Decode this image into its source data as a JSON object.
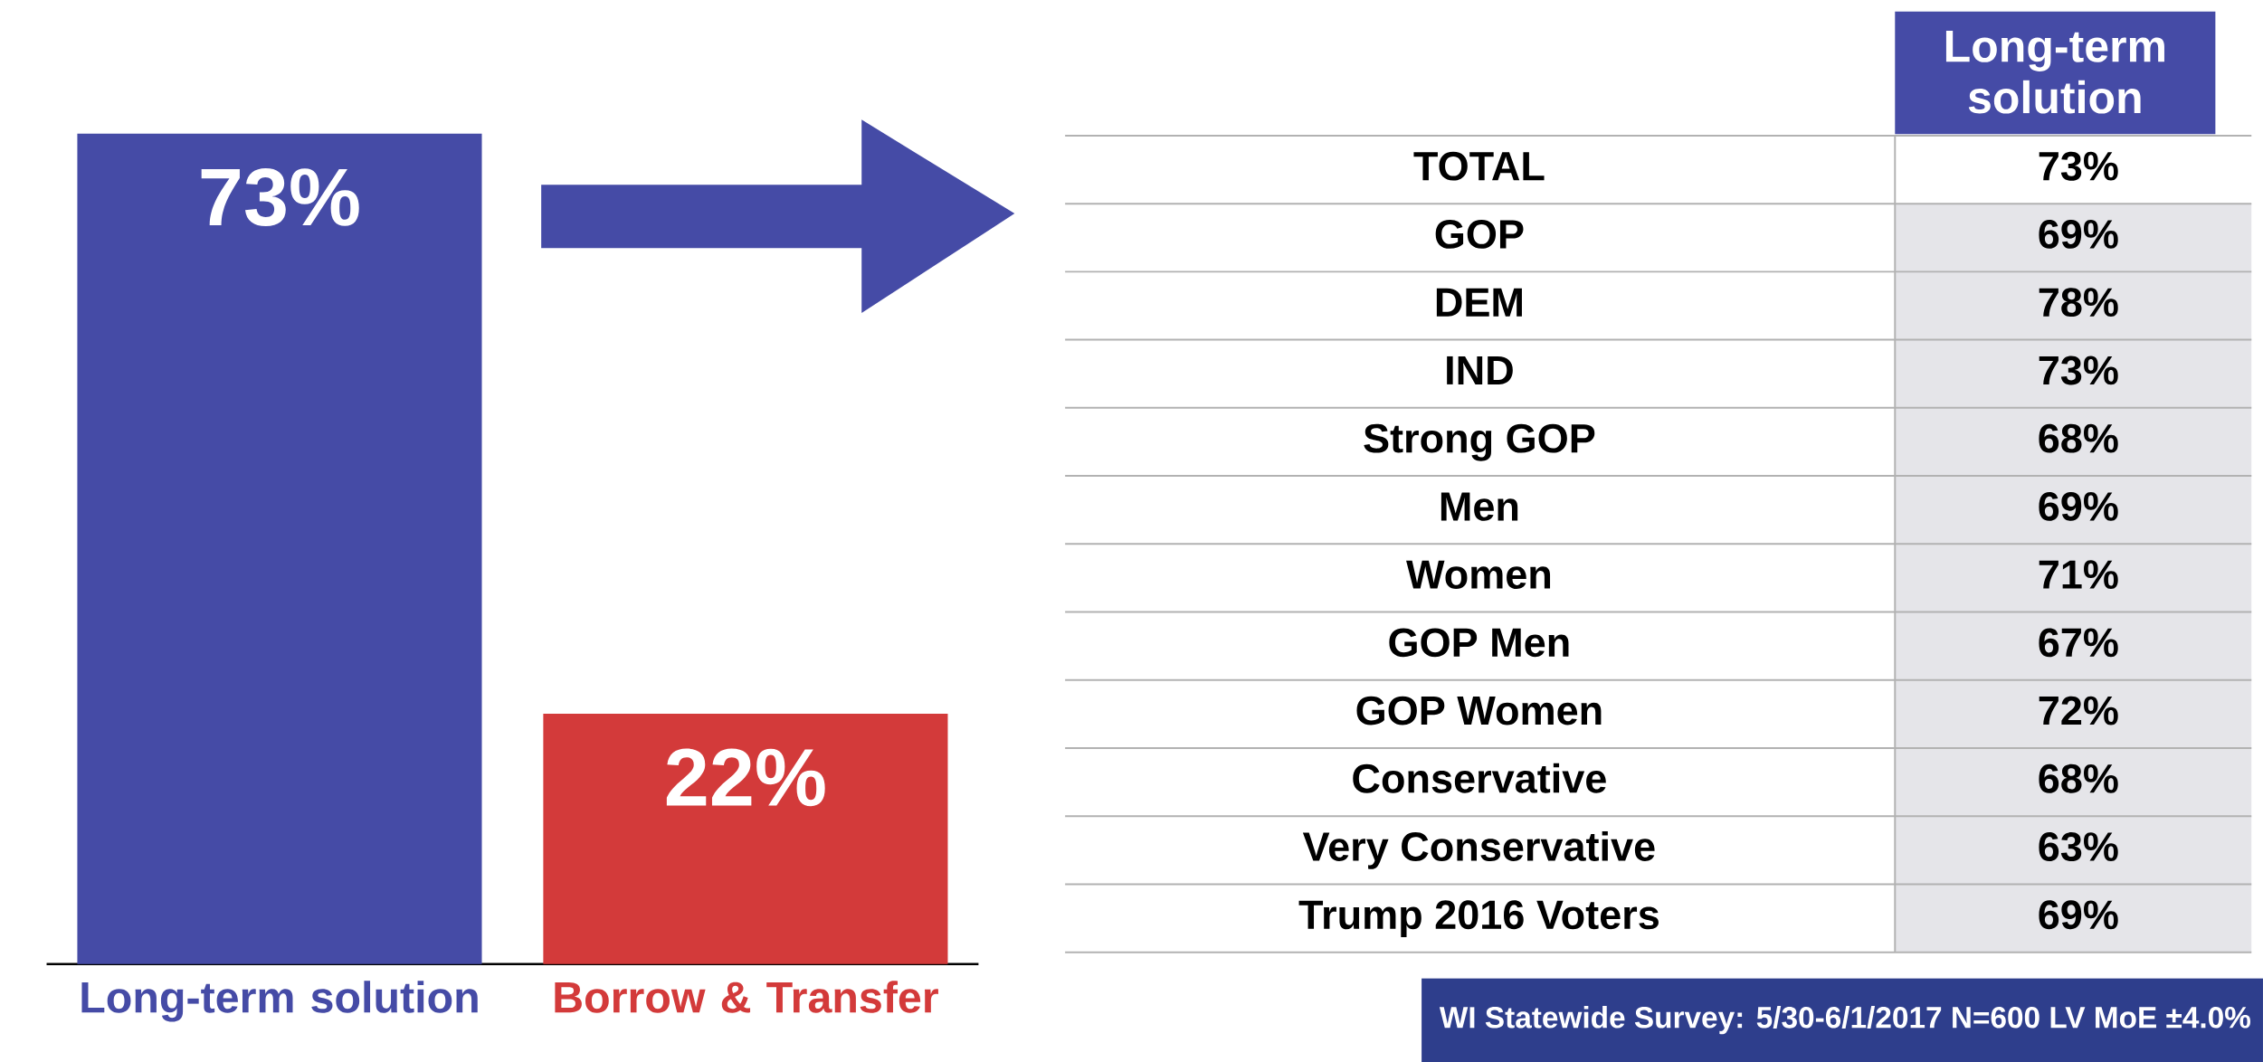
{
  "chart_data": [
    {
      "type": "bar",
      "categories": [
        "Long-term solution",
        "Borrow & Transfer"
      ],
      "values": [
        73,
        22
      ],
      "colors": [
        "#454ba6",
        "#d33a3a"
      ],
      "value_labels": [
        "73%",
        "22%"
      ]
    },
    {
      "type": "other",
      "title": "Long-term solution",
      "categories": [
        "TOTAL",
        "GOP",
        "DEM",
        "IND",
        "Strong GOP",
        "Men",
        "Women",
        "GOP Men",
        "GOP Women",
        "Conservative",
        "Very Conservative",
        "Trump 2016 Voters"
      ],
      "values": [
        73,
        69,
        78,
        73,
        68,
        69,
        71,
        67,
        72,
        68,
        63,
        69
      ],
      "value_labels": [
        "73%",
        "69%",
        "78%",
        "73%",
        "68%",
        "69%",
        "71%",
        "67%",
        "72%",
        "68%",
        "63%",
        "69%"
      ],
      "annotations": [
        "WI Statewide Survey: 5/30-6/1/2017  N=600 LV MoE ±4.0%"
      ]
    }
  ]
}
